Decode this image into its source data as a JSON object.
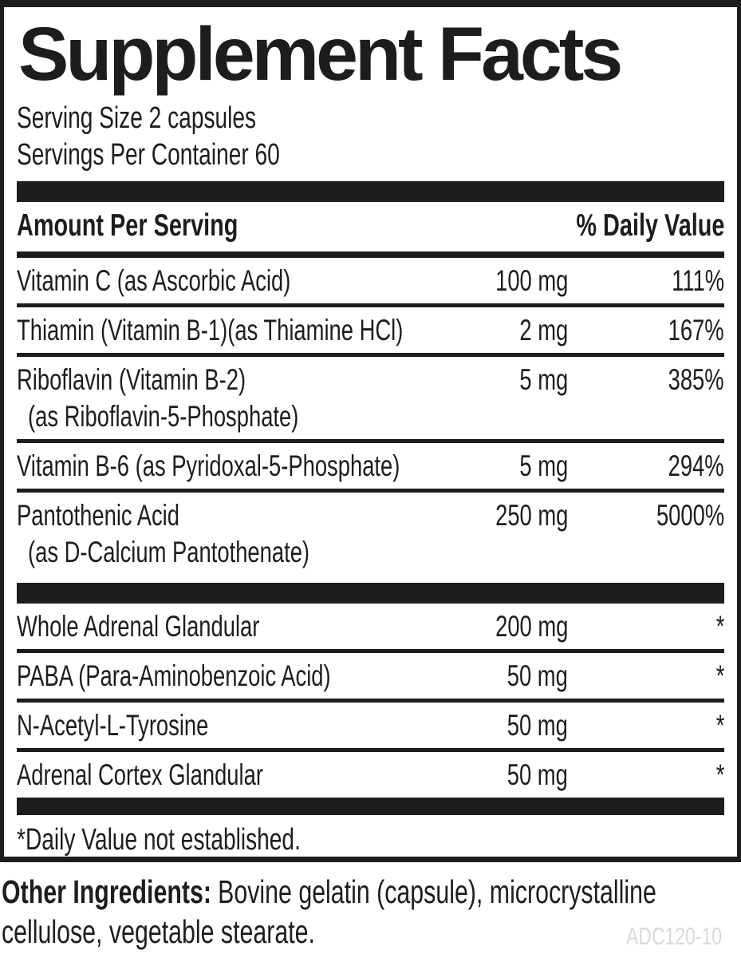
{
  "panel": {
    "title": "Supplement Facts",
    "serving_size": "Serving Size 2 capsules",
    "servings_per_container": "Servings Per Container 60",
    "header": {
      "amount_label": "Amount Per Serving",
      "daily_value_label": "% Daily Value"
    },
    "section1": {
      "rows": [
        {
          "name": "Vitamin C (as Ascorbic Acid)",
          "amount": "100 mg",
          "dv": "111%"
        },
        {
          "name": "Thiamin (Vitamin B-1)(as Thiamine HCl)",
          "amount": "2 mg",
          "dv": "167%"
        },
        {
          "name": "Riboflavin (Vitamin B-2)",
          "name2": "(as Riboflavin-5-Phosphate)",
          "amount": "5 mg",
          "dv": "385%"
        },
        {
          "name": "Vitamin B-6 (as Pyridoxal-5-Phosphate)",
          "amount": "5 mg",
          "dv": "294%"
        },
        {
          "name": "Pantothenic Acid",
          "name2": "(as D-Calcium Pantothenate)",
          "amount": "250 mg",
          "dv": "5000%"
        }
      ]
    },
    "section2": {
      "rows": [
        {
          "name": "Whole Adrenal Glandular",
          "amount": "200 mg",
          "dv": "*"
        },
        {
          "name": "PABA (Para-Aminobenzoic Acid)",
          "amount": "50 mg",
          "dv": "*"
        },
        {
          "name": "N-Acetyl-L-Tyrosine",
          "amount": "50 mg",
          "dv": "*"
        },
        {
          "name": "Adrenal Cortex Glandular",
          "amount": "50 mg",
          "dv": "*"
        }
      ]
    },
    "footnote": "*Daily Value not established."
  },
  "other_ingredients": {
    "label": "Other Ingredients:",
    "line1": "Bovine gelatin (capsule), microcrystalline",
    "line2": "cellulose, vegetable stearate."
  },
  "product_code": "ADC120-10",
  "colors": {
    "ink": "#1d1d1b",
    "code_gray": "#d9d9d9",
    "paper": "#ffffff"
  }
}
